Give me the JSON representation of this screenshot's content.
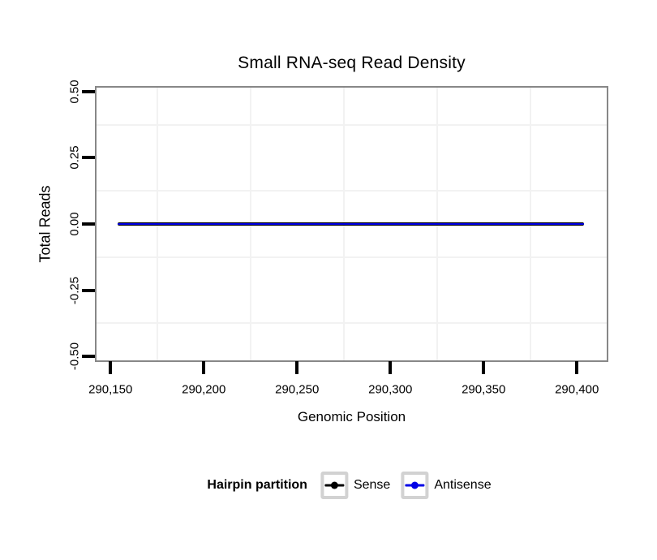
{
  "chart_data": {
    "type": "line",
    "title": "Small RNA-seq Read Density",
    "xlabel": "Genomic Position",
    "ylabel": "Total Reads",
    "xlim": [
      290142.5,
      290416
    ],
    "ylim": [
      -0.5152,
      0.5152
    ],
    "x_ticks": [
      290150,
      290200,
      290250,
      290300,
      290350,
      290400
    ],
    "x_tick_labels": [
      "290,150",
      "290,200",
      "290,250",
      "290,300",
      "290,350",
      "290,400"
    ],
    "x_minor_gridlines": [
      290175,
      290225,
      290275,
      290325,
      290375
    ],
    "y_ticks": [
      0.5,
      0.25,
      0,
      -0.25,
      -0.5
    ],
    "y_tick_labels": [
      "0.50",
      "0.25",
      "0.00",
      "-0.25",
      "-0.50"
    ],
    "y_minor_gridlines": [
      0.375,
      0.125,
      -0.125,
      -0.375
    ],
    "grid": "minor gridlines only, very light gray on white panel; major gridlines not visible",
    "legend_title": "Hairpin partition",
    "legend_position": "bottom-center",
    "series": [
      {
        "name": "Sense",
        "color": "#000000",
        "linewidth": 4,
        "x": [
          290154,
          290404
        ],
        "y": [
          0,
          0
        ]
      },
      {
        "name": "Antisense",
        "color": "#0000e6",
        "linewidth": 2,
        "x": [
          290154,
          290404
        ],
        "y": [
          0,
          0
        ]
      }
    ],
    "colors": {
      "panel_border": "#878787",
      "minor_grid": "#f2f2f2",
      "tick": "#000000",
      "text": "#000000",
      "legend_key_border": "#d2d2d2",
      "sense": "#000000",
      "antisense": "#0000e6"
    }
  }
}
